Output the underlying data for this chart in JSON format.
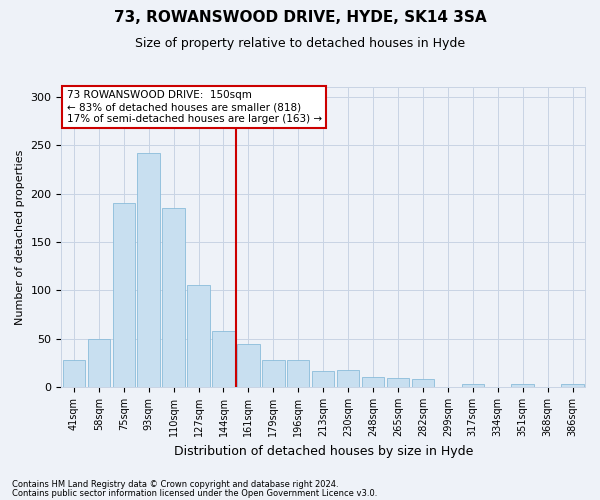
{
  "title": "73, ROWANSWOOD DRIVE, HYDE, SK14 3SA",
  "subtitle": "Size of property relative to detached houses in Hyde",
  "xlabel": "Distribution of detached houses by size in Hyde",
  "ylabel": "Number of detached properties",
  "footer1": "Contains HM Land Registry data © Crown copyright and database right 2024.",
  "footer2": "Contains public sector information licensed under the Open Government Licence v3.0.",
  "annotation_line1": "73 ROWANSWOOD DRIVE:  150sqm",
  "annotation_line2": "← 83% of detached houses are smaller (818)",
  "annotation_line3": "17% of semi-detached houses are larger (163) →",
  "categories": [
    "41sqm",
    "58sqm",
    "75sqm",
    "93sqm",
    "110sqm",
    "127sqm",
    "144sqm",
    "161sqm",
    "179sqm",
    "196sqm",
    "213sqm",
    "230sqm",
    "248sqm",
    "265sqm",
    "282sqm",
    "299sqm",
    "317sqm",
    "334sqm",
    "351sqm",
    "368sqm",
    "386sqm"
  ],
  "values": [
    28,
    50,
    190,
    242,
    185,
    106,
    58,
    45,
    28,
    28,
    17,
    18,
    10,
    9,
    8,
    0,
    3,
    0,
    3,
    0,
    3
  ],
  "bar_color": "#c8dff0",
  "bar_edge_color": "#8bbcda",
  "vline_color": "#cc0000",
  "vline_x_idx": 7,
  "annotation_box_color": "#ffffff",
  "annotation_box_edge": "#cc0000",
  "grid_color": "#c8d4e4",
  "background_color": "#eef2f8",
  "ylim": [
    0,
    310
  ],
  "yticks": [
    0,
    50,
    100,
    150,
    200,
    250,
    300
  ],
  "title_fontsize": 11,
  "subtitle_fontsize": 9,
  "axis_label_fontsize": 8,
  "tick_fontsize": 7,
  "annotation_fontsize": 7.5,
  "footer_fontsize": 6
}
